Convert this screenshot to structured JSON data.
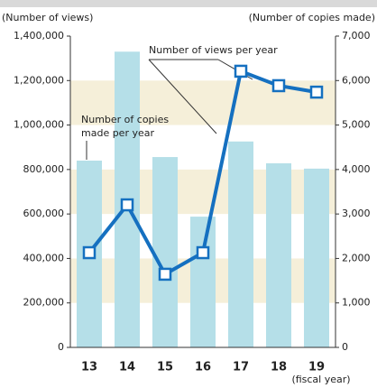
{
  "chart_data": {
    "type": "bar_line",
    "y_label": "(Number of views)",
    "y2_label": "(Number of copies made)",
    "x_label": "(fiscal year)",
    "categories": [
      "13",
      "14",
      "15",
      "16",
      "17",
      "18",
      "19"
    ],
    "series": [
      {
        "name": "Number of copies made per year",
        "type": "bar",
        "axis": "y2",
        "color": "#b5dfe8",
        "values": [
          4200,
          6650,
          4280,
          2940,
          4630,
          4140,
          4020
        ]
      },
      {
        "name": "Number of views per year",
        "type": "line",
        "color": "#1570c0",
        "values": [
          426000,
          641000,
          329000,
          426000,
          1242000,
          1177000,
          1148000
        ]
      }
    ],
    "ylim": [
      0,
      1400000
    ],
    "yticks": [
      0,
      {
        "value": 200000,
        "label": "200,000"
      },
      {
        "value": 400000,
        "label": "400,000"
      },
      {
        "value": 600000,
        "label": "600,000"
      },
      {
        "value": 800000,
        "label": "800,000"
      },
      {
        "value": 1000000,
        "label": "1,000,000"
      },
      {
        "value": 1200000,
        "label": "1,200,000"
      },
      {
        "value": 1400000,
        "label": "1,400,000"
      }
    ],
    "y2lim": [
      0,
      7000
    ],
    "y2ticks": [
      0,
      {
        "value": 1000,
        "label": "1,000"
      },
      {
        "value": 2000,
        "label": "2,000"
      },
      {
        "value": 3000,
        "label": "3,000"
      },
      {
        "value": 4000,
        "label": "4,000"
      },
      {
        "value": 5000,
        "label": "5,000"
      },
      {
        "value": 6000,
        "label": "6,000"
      },
      {
        "value": 7000,
        "label": "7,000"
      }
    ]
  }
}
